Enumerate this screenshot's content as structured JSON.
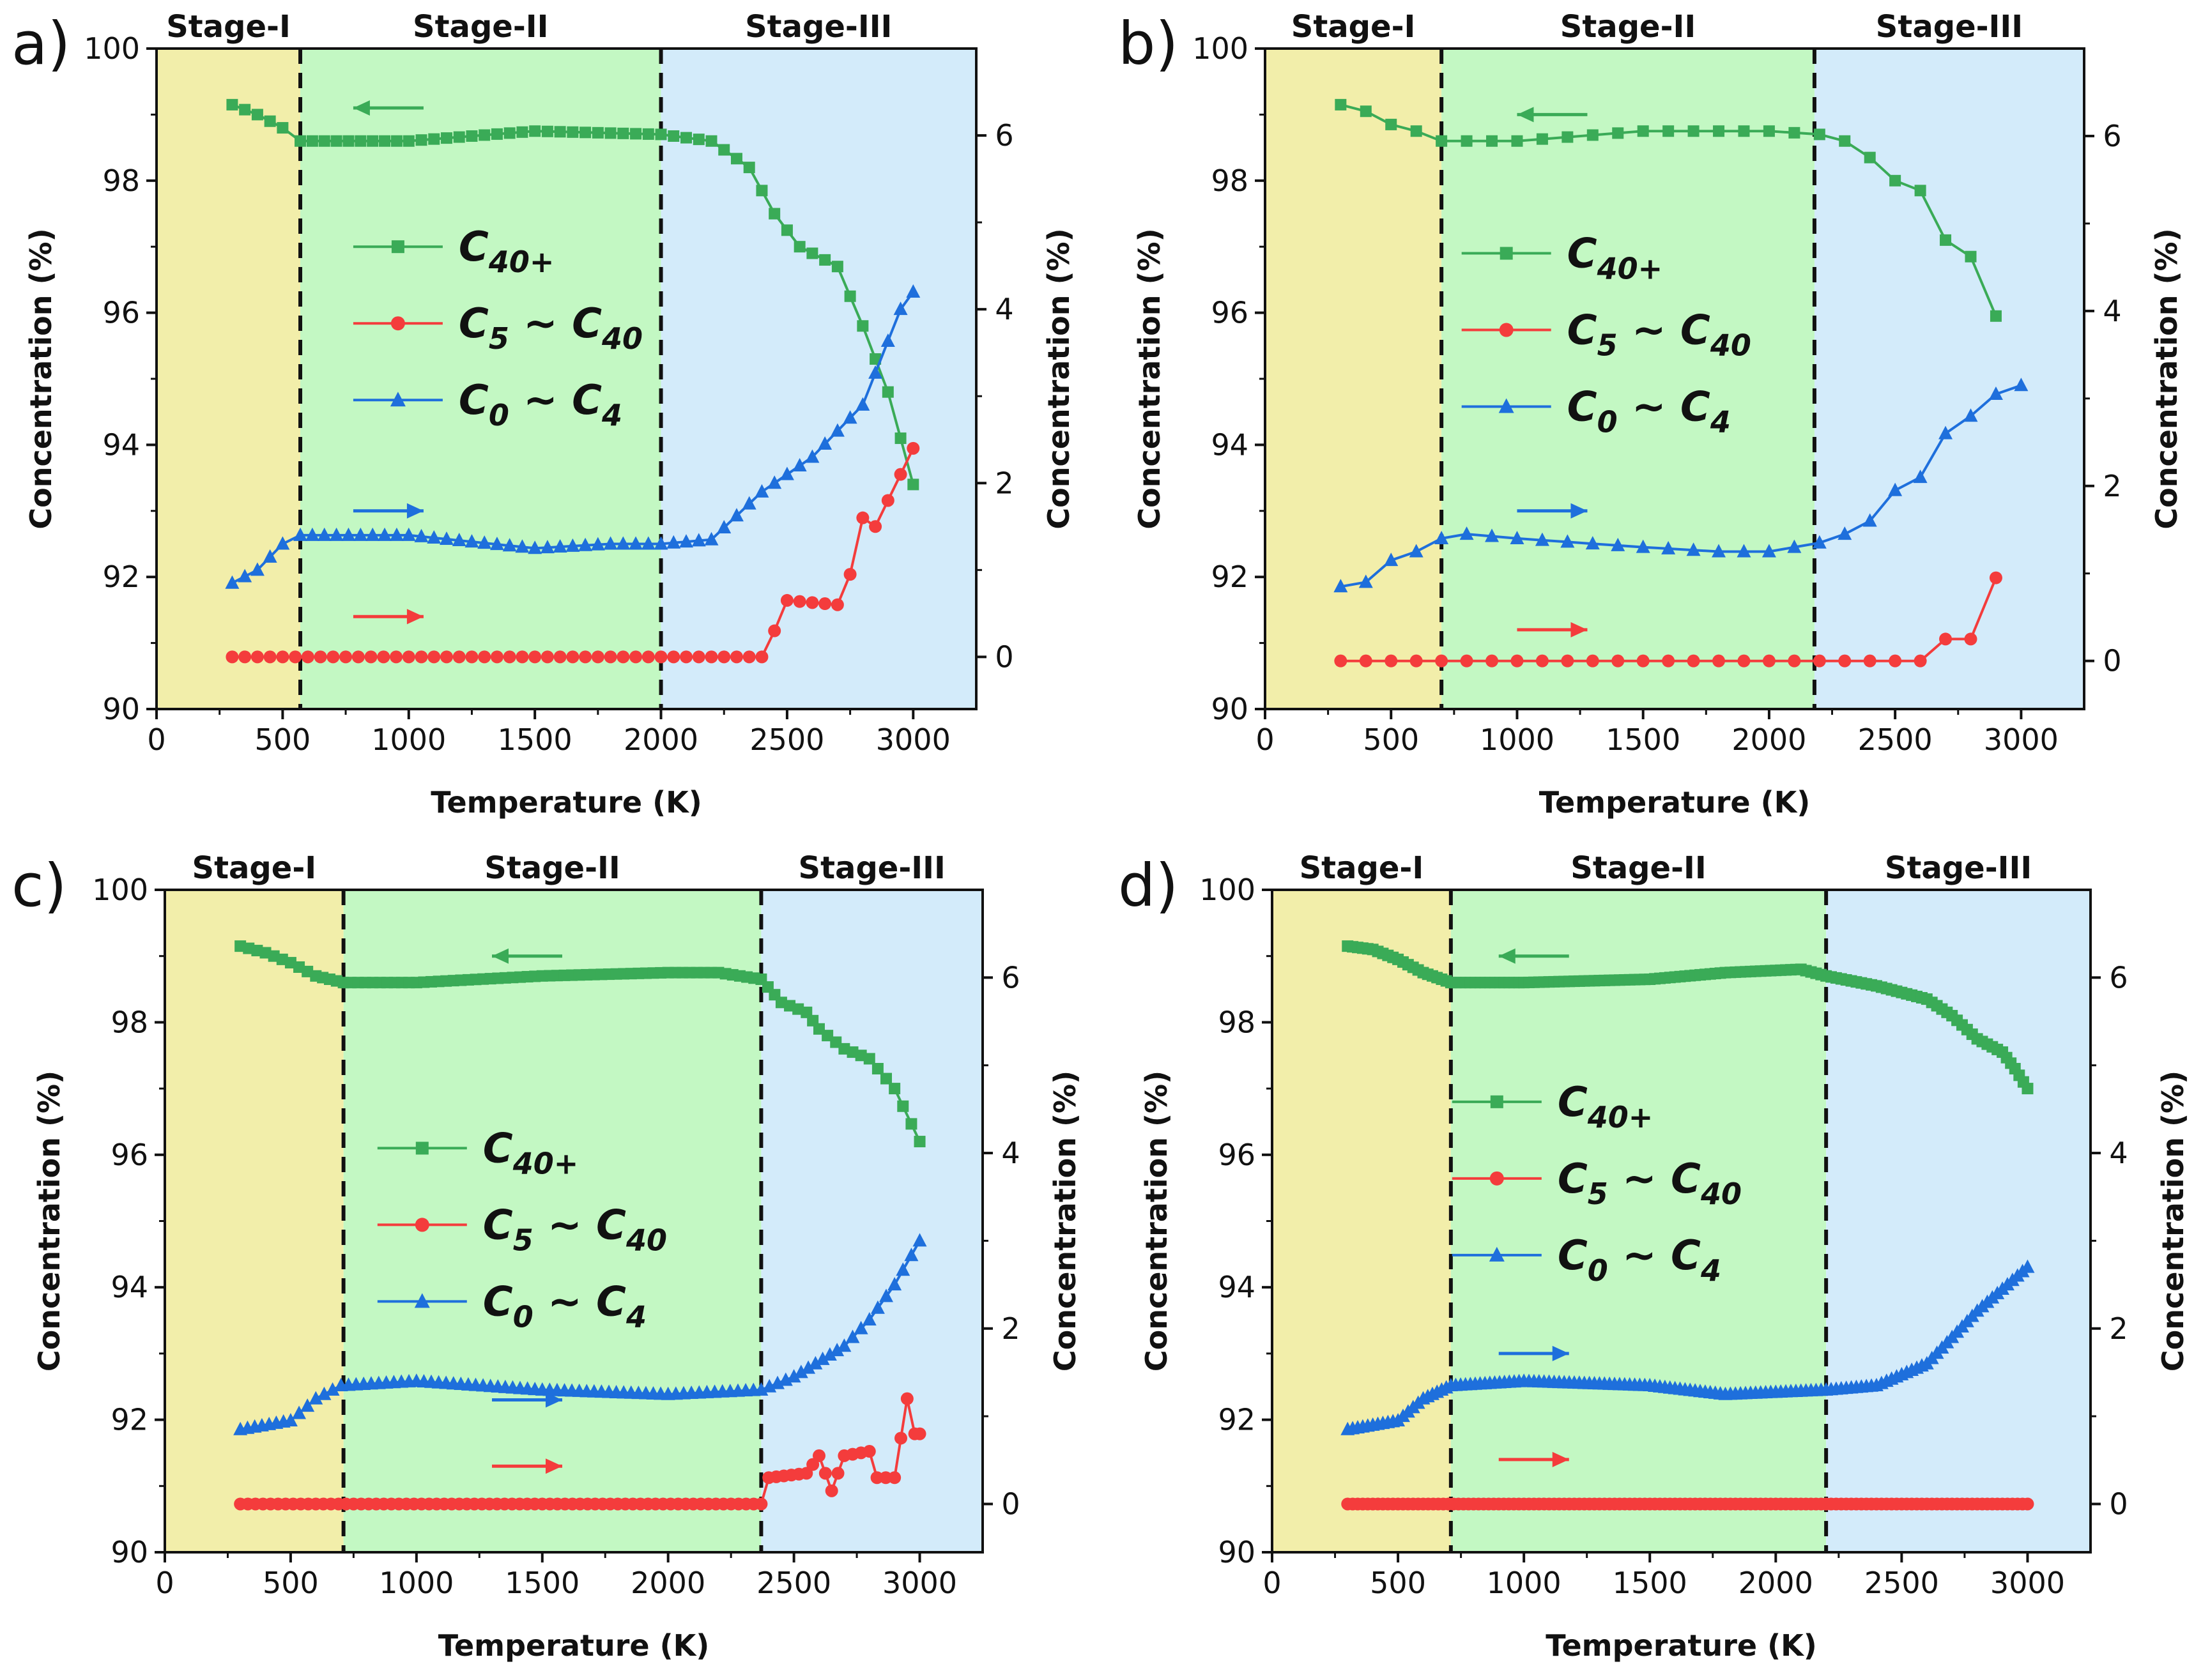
{
  "figure": {
    "colors": {
      "stage1": "#f2eeaa",
      "stage2": "#c3f8c3",
      "stage3": "#d3ebfa",
      "c40plus": "#3aab57",
      "c5_c40": "#f43c3c",
      "c0_c4": "#1e6fdc"
    }
  },
  "chart_data": [
    {
      "panel": "a)",
      "type": "line",
      "xlabel": "Temperature (K)",
      "ylabel_left": "Concentration (%)",
      "ylabel_right": "Concentration (%)",
      "xlim": [
        0,
        3250
      ],
      "ylim_left": [
        90,
        100
      ],
      "ylim_right": [
        -0.6,
        7.0
      ],
      "x_ticks": [
        "0",
        "500",
        "1000",
        "1500",
        "2000",
        "2500",
        "3000"
      ],
      "y_ticks_left": [
        "90",
        "92",
        "94",
        "96",
        "98",
        "100"
      ],
      "y_ticks_right": [
        "0",
        "2",
        "4",
        "6"
      ],
      "stages": [
        {
          "label": "Stage-I",
          "from": 0,
          "to": 570
        },
        {
          "label": "Stage-II",
          "from": 570,
          "to": 2000
        },
        {
          "label": "Stage-III",
          "from": 2000,
          "to": 3250
        }
      ],
      "stage_boundaries": [
        570,
        2000
      ],
      "legend": {
        "c40plus": {
          "base": "C",
          "sub": "40+",
          "tail": "",
          "tail_sub": ""
        },
        "c5_c40": {
          "base": "C",
          "sub": "5",
          "tail": " ~ C",
          "tail_sub": "40"
        },
        "c0_c4": {
          "base": "C",
          "sub": "0",
          "tail": " ~ C",
          "tail_sub": "4"
        }
      },
      "series": [
        {
          "name": "C40+",
          "axis": "left",
          "marker": "square",
          "step": 50,
          "points": [
            [
              300,
              99.15
            ],
            [
              400,
              99.0
            ],
            [
              500,
              98.8
            ],
            [
              570,
              98.6
            ],
            [
              1000,
              98.6
            ],
            [
              1500,
              98.75
            ],
            [
              2000,
              98.7
            ],
            [
              2200,
              98.6
            ],
            [
              2350,
              98.2
            ],
            [
              2450,
              97.5
            ],
            [
              2550,
              97.0
            ],
            [
              2700,
              96.7
            ],
            [
              2800,
              95.8
            ],
            [
              2900,
              94.8
            ],
            [
              3000,
              93.4
            ]
          ]
        },
        {
          "name": "C5 ~ C40",
          "axis": "right",
          "marker": "circle",
          "step": 50,
          "points": [
            [
              300,
              0
            ],
            [
              2400,
              0
            ],
            [
              2450,
              0.3
            ],
            [
              2500,
              0.65
            ],
            [
              2700,
              0.6
            ],
            [
              2750,
              0.95
            ],
            [
              2800,
              1.6
            ],
            [
              2850,
              1.5
            ],
            [
              2900,
              1.8
            ],
            [
              2950,
              2.1
            ],
            [
              3000,
              2.4
            ]
          ]
        },
        {
          "name": "C0 ~ C4",
          "axis": "right",
          "marker": "triangle",
          "step": 50,
          "points": [
            [
              300,
              0.85
            ],
            [
              400,
              1.0
            ],
            [
              500,
              1.3
            ],
            [
              570,
              1.4
            ],
            [
              1000,
              1.4
            ],
            [
              1500,
              1.25
            ],
            [
              1800,
              1.3
            ],
            [
              2000,
              1.3
            ],
            [
              2200,
              1.35
            ],
            [
              2400,
              1.9
            ],
            [
              2600,
              2.3
            ],
            [
              2800,
              2.9
            ],
            [
              2950,
              4.0
            ],
            [
              3000,
              4.2
            ]
          ]
        }
      ]
    },
    {
      "panel": "b)",
      "type": "line",
      "xlabel": "Temperature (K)",
      "ylabel_left": "Concentration (%)",
      "ylabel_right": "Concentration (%)",
      "xlim": [
        0,
        3250
      ],
      "ylim_left": [
        90,
        100
      ],
      "ylim_right": [
        -0.55,
        7.0
      ],
      "x_ticks": [
        "0",
        "500",
        "1000",
        "1500",
        "2000",
        "2500",
        "3000"
      ],
      "y_ticks_left": [
        "90",
        "92",
        "94",
        "96",
        "98",
        "100"
      ],
      "y_ticks_right": [
        "0",
        "2",
        "4",
        "6"
      ],
      "stages": [
        {
          "label": "Stage-I",
          "from": 0,
          "to": 700
        },
        {
          "label": "Stage-II",
          "from": 700,
          "to": 2180
        },
        {
          "label": "Stage-III",
          "from": 2180,
          "to": 3250
        }
      ],
      "stage_boundaries": [
        700,
        2180
      ],
      "legend": {
        "c40plus": {
          "base": "C",
          "sub": "40+",
          "tail": "",
          "tail_sub": ""
        },
        "c5_c40": {
          "base": "C",
          "sub": "5",
          "tail": " ~ C",
          "tail_sub": "40"
        },
        "c0_c4": {
          "base": "C",
          "sub": "0",
          "tail": " ~ C",
          "tail_sub": "4"
        }
      },
      "series": [
        {
          "name": "C40+",
          "axis": "left",
          "marker": "square",
          "step": 100,
          "points": [
            [
              300,
              99.15
            ],
            [
              400,
              99.05
            ],
            [
              500,
              98.85
            ],
            [
              600,
              98.75
            ],
            [
              700,
              98.6
            ],
            [
              1000,
              98.6
            ],
            [
              1500,
              98.75
            ],
            [
              2000,
              98.75
            ],
            [
              2200,
              98.7
            ],
            [
              2300,
              98.6
            ],
            [
              2400,
              98.35
            ],
            [
              2500,
              98.0
            ],
            [
              2600,
              97.85
            ],
            [
              2700,
              97.1
            ],
            [
              2800,
              96.85
            ],
            [
              2900,
              95.95
            ]
          ]
        },
        {
          "name": "C5 ~ C40",
          "axis": "right",
          "marker": "circle",
          "step": 100,
          "points": [
            [
              300,
              0
            ],
            [
              2600,
              0
            ],
            [
              2700,
              0.25
            ],
            [
              2800,
              0.25
            ],
            [
              2900,
              0.95
            ]
          ]
        },
        {
          "name": "C0 ~ C4",
          "axis": "right",
          "marker": "triangle",
          "step": 100,
          "points": [
            [
              300,
              0.85
            ],
            [
              400,
              0.9
            ],
            [
              500,
              1.15
            ],
            [
              600,
              1.25
            ],
            [
              700,
              1.4
            ],
            [
              800,
              1.45
            ],
            [
              1000,
              1.4
            ],
            [
              1500,
              1.3
            ],
            [
              1800,
              1.25
            ],
            [
              2000,
              1.25
            ],
            [
              2200,
              1.35
            ],
            [
              2300,
              1.45
            ],
            [
              2400,
              1.6
            ],
            [
              2500,
              1.95
            ],
            [
              2600,
              2.1
            ],
            [
              2700,
              2.6
            ],
            [
              2800,
              2.8
            ],
            [
              2900,
              3.05
            ],
            [
              3000,
              3.15
            ]
          ]
        }
      ]
    },
    {
      "panel": "c)",
      "type": "line",
      "xlabel": "Temperature (K)",
      "ylabel_left": "Concentration (%)",
      "ylabel_right": "Concentration (%)",
      "xlim": [
        0,
        3250
      ],
      "ylim_left": [
        90,
        100
      ],
      "ylim_right": [
        -0.55,
        7.0
      ],
      "x_ticks": [
        "0",
        "500",
        "1000",
        "1500",
        "2000",
        "2500",
        "3000"
      ],
      "y_ticks_left": [
        "90",
        "92",
        "94",
        "96",
        "98",
        "100"
      ],
      "y_ticks_right": [
        "0",
        "2",
        "4",
        "6"
      ],
      "stages": [
        {
          "label": "Stage-I",
          "from": 0,
          "to": 710
        },
        {
          "label": "Stage-II",
          "from": 710,
          "to": 2370
        },
        {
          "label": "Stage-III",
          "from": 2370,
          "to": 3250
        }
      ],
      "stage_boundaries": [
        710,
        2370
      ],
      "legend": {
        "c40plus": {
          "base": "C",
          "sub": "40+",
          "tail": "",
          "tail_sub": ""
        },
        "c5_c40": {
          "base": "C",
          "sub": "5",
          "tail": " ~ C",
          "tail_sub": "40"
        },
        "c0_c4": {
          "base": "C",
          "sub": "0",
          "tail": " ~ C",
          "tail_sub": "4"
        }
      },
      "series": [
        {
          "name": "C40+",
          "axis": "left",
          "marker": "square",
          "step": 30,
          "points": [
            [
              300,
              99.15
            ],
            [
              400,
              99.05
            ],
            [
              500,
              98.9
            ],
            [
              600,
              98.7
            ],
            [
              710,
              98.6
            ],
            [
              1000,
              98.6
            ],
            [
              1500,
              98.7
            ],
            [
              2000,
              98.75
            ],
            [
              2200,
              98.75
            ],
            [
              2370,
              98.65
            ],
            [
              2450,
              98.3
            ],
            [
              2550,
              98.15
            ],
            [
              2600,
              97.9
            ],
            [
              2700,
              97.6
            ],
            [
              2800,
              97.45
            ],
            [
              2900,
              97.0
            ],
            [
              3000,
              96.2
            ]
          ]
        },
        {
          "name": "C5 ~ C40",
          "axis": "right",
          "marker": "circle",
          "step": 30,
          "points": [
            [
              300,
              0
            ],
            [
              2370,
              0
            ],
            [
              2400,
              0.3
            ],
            [
              2550,
              0.35
            ],
            [
              2600,
              0.55
            ],
            [
              2650,
              0.15
            ],
            [
              2700,
              0.55
            ],
            [
              2800,
              0.6
            ],
            [
              2830,
              0.3
            ],
            [
              2900,
              0.3
            ],
            [
              2950,
              1.2
            ],
            [
              2980,
              0.8
            ],
            [
              3000,
              0.8
            ]
          ]
        },
        {
          "name": "C0 ~ C4",
          "axis": "right",
          "marker": "triangle",
          "step": 30,
          "points": [
            [
              300,
              0.85
            ],
            [
              500,
              0.95
            ],
            [
              600,
              1.2
            ],
            [
              700,
              1.35
            ],
            [
              1000,
              1.4
            ],
            [
              1500,
              1.3
            ],
            [
              2000,
              1.25
            ],
            [
              2370,
              1.3
            ],
            [
              2500,
              1.45
            ],
            [
              2700,
              1.8
            ],
            [
              2800,
              2.1
            ],
            [
              2900,
              2.5
            ],
            [
              3000,
              3.0
            ]
          ]
        }
      ]
    },
    {
      "panel": "d)",
      "type": "line",
      "xlabel": "Temperature (K)",
      "ylabel_left": "Concentration (%)",
      "ylabel_right": "Concentration (%)",
      "xlim": [
        0,
        3250
      ],
      "ylim_left": [
        90,
        100
      ],
      "ylim_right": [
        -0.55,
        7.0
      ],
      "x_ticks": [
        "0",
        "500",
        "1000",
        "1500",
        "2000",
        "2500",
        "3000"
      ],
      "y_ticks_left": [
        "90",
        "92",
        "94",
        "96",
        "98",
        "100"
      ],
      "y_ticks_right": [
        "0",
        "2",
        "4",
        "6"
      ],
      "stages": [
        {
          "label": "Stage-I",
          "from": 0,
          "to": 710
        },
        {
          "label": "Stage-II",
          "from": 710,
          "to": 2200
        },
        {
          "label": "Stage-III",
          "from": 2200,
          "to": 3250
        }
      ],
      "stage_boundaries": [
        710,
        2200
      ],
      "legend": {
        "c40plus": {
          "base": "C",
          "sub": "40+",
          "tail": "",
          "tail_sub": ""
        },
        "c5_c40": {
          "base": "C",
          "sub": "5",
          "tail": " ~ C",
          "tail_sub": "40"
        },
        "c0_c4": {
          "base": "C",
          "sub": "0",
          "tail": " ~ C",
          "tail_sub": "4"
        }
      },
      "series": [
        {
          "name": "C40+",
          "axis": "left",
          "marker": "square",
          "step": 20,
          "points": [
            [
              300,
              99.15
            ],
            [
              400,
              99.1
            ],
            [
              500,
              98.95
            ],
            [
              600,
              98.75
            ],
            [
              710,
              98.6
            ],
            [
              1000,
              98.6
            ],
            [
              1500,
              98.65
            ],
            [
              1800,
              98.75
            ],
            [
              2100,
              98.8
            ],
            [
              2200,
              98.7
            ],
            [
              2400,
              98.55
            ],
            [
              2600,
              98.35
            ],
            [
              2700,
              98.1
            ],
            [
              2800,
              97.75
            ],
            [
              2900,
              97.55
            ],
            [
              2950,
              97.3
            ],
            [
              3000,
              97.0
            ]
          ]
        },
        {
          "name": "C5 ~ C40",
          "axis": "right",
          "marker": "circle",
          "step": 20,
          "points": [
            [
              300,
              0
            ],
            [
              3000,
              0
            ]
          ]
        },
        {
          "name": "C0 ~ C4",
          "axis": "right",
          "marker": "triangle",
          "step": 20,
          "points": [
            [
              300,
              0.85
            ],
            [
              500,
              0.95
            ],
            [
              600,
              1.2
            ],
            [
              710,
              1.35
            ],
            [
              1000,
              1.4
            ],
            [
              1500,
              1.35
            ],
            [
              1800,
              1.25
            ],
            [
              2200,
              1.3
            ],
            [
              2400,
              1.35
            ],
            [
              2600,
              1.6
            ],
            [
              2800,
              2.2
            ],
            [
              3000,
              2.7
            ]
          ]
        }
      ]
    }
  ]
}
